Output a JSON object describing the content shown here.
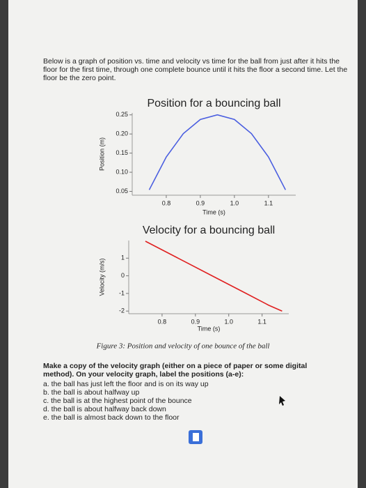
{
  "intro": "Below is a graph of position vs. time and velocity vs time for the ball from just after it hits the floor for the first time, through one complete bounce until it hits the floor a second time. Let the floor be the zero point.",
  "chart_data": [
    {
      "type": "line",
      "title": "Position for a bouncing ball",
      "x_label": "Time (s)",
      "y_label": "Position (m)",
      "x": [
        0.75,
        0.8,
        0.85,
        0.9,
        0.95,
        1.0,
        1.05,
        1.1,
        1.15
      ],
      "values": [
        0.054,
        0.14,
        0.201,
        0.238,
        0.25,
        0.238,
        0.201,
        0.14,
        0.054
      ],
      "color": "#4a5ee0",
      "xlim": [
        0.7,
        1.18
      ],
      "xticks": [
        0.8,
        0.9,
        {
          "value": 1,
          "label": "1.0"
        },
        1.1
      ],
      "ylim": [
        0.04,
        0.255
      ],
      "yticks": [
        0.05,
        {
          "value": 0.1,
          "label": "0.10"
        },
        0.15,
        {
          "value": 0.2,
          "label": "0.20"
        },
        0.25
      ]
    },
    {
      "type": "line",
      "title": "Velocity for a bouncing ball",
      "x_label": "Time (s)",
      "y_label": "Velocity (m/s)",
      "x": [
        0.75,
        0.85,
        0.95,
        1.05,
        1.12,
        1.16
      ],
      "values": [
        1.96,
        0.98,
        0,
        -0.98,
        -1.67,
        -2.0
      ],
      "color": "#e02020",
      "xlim": [
        0.7,
        1.18
      ],
      "xticks": [
        0.8,
        0.9,
        {
          "value": 1,
          "label": "1.0"
        },
        1.1
      ],
      "ylim": [
        -2.15,
        2.0
      ],
      "yticks": [
        1,
        0,
        -1,
        -2
      ]
    }
  ],
  "caption": "Figure 3: Position and velocity of one bounce of the ball",
  "instructions": "Make a copy of the velocity graph (either on a piece of paper or some digital method). On your velocity graph, label the positions (a-e):",
  "items": [
    "a. the ball has just left the floor and is on its way up",
    "b. the ball is about halfway up",
    "c. the ball is at the highest point of the bounce",
    "d. the ball is about halfway back down",
    "e. the ball is almost back down to the floor"
  ]
}
